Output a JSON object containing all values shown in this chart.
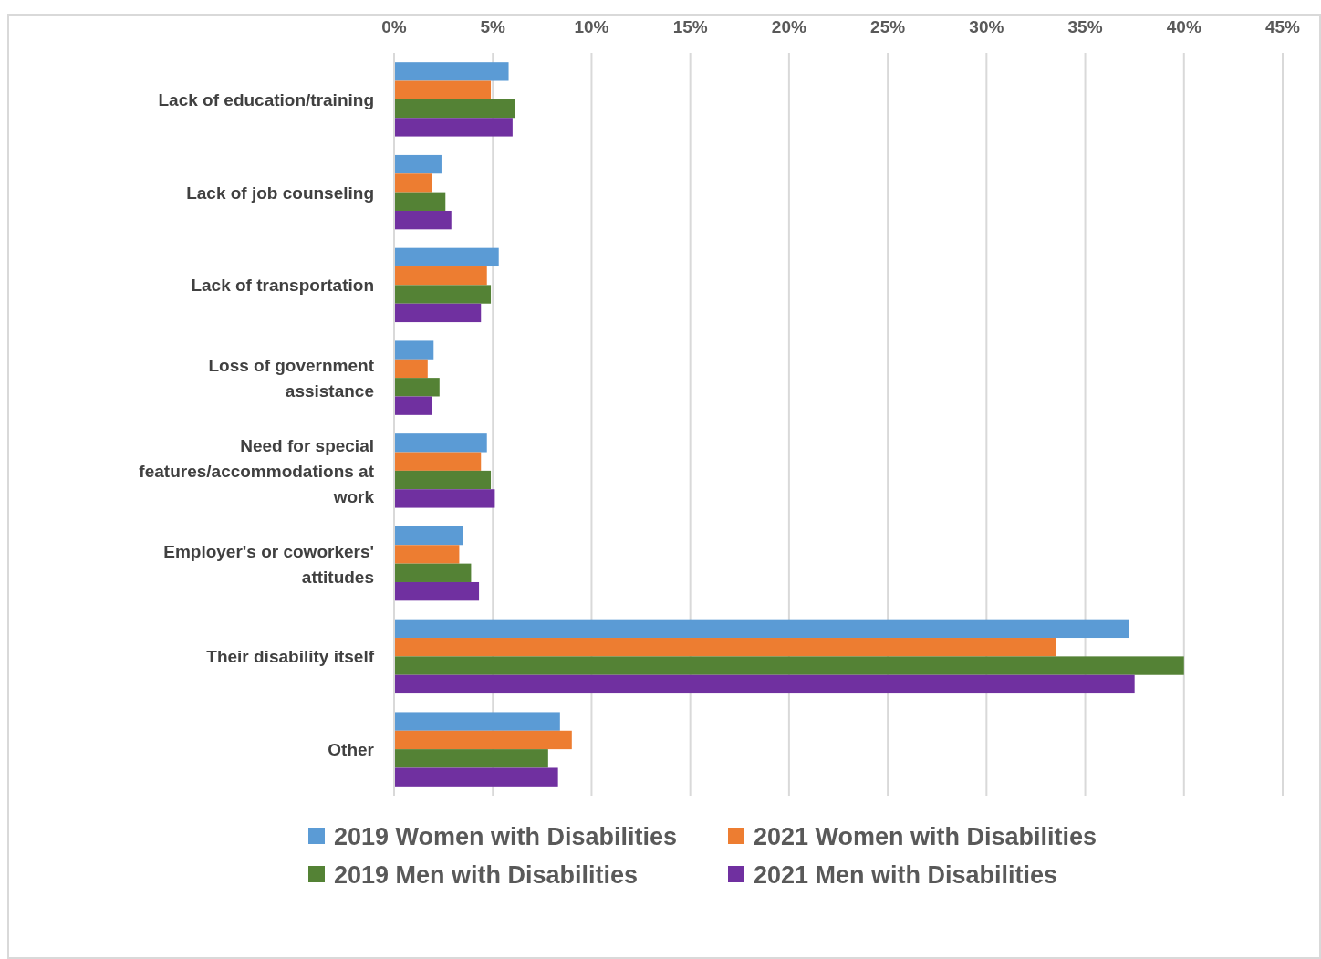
{
  "chart_data": {
    "type": "bar",
    "orientation": "horizontal",
    "categories": [
      "Lack of education/training",
      "Lack of job counseling",
      "Lack of transportation",
      "Loss of government assistance",
      "Need for special features/accommodations at work",
      "Employer's or coworkers' attitudes",
      "Their disability itself",
      "Other"
    ],
    "series": [
      {
        "name": "2019 Women with Disabilities",
        "color": "#5b9bd5",
        "values": [
          5.8,
          2.4,
          5.3,
          2.0,
          4.7,
          3.5,
          37.2,
          8.4
        ]
      },
      {
        "name": "2021 Women with Disabilities",
        "color": "#ed7d31",
        "values": [
          4.9,
          1.9,
          4.7,
          1.7,
          4.4,
          3.3,
          33.5,
          9.0
        ]
      },
      {
        "name": "2019 Men with Disabilities",
        "color": "#548235",
        "values": [
          6.1,
          2.6,
          4.9,
          2.3,
          4.9,
          3.9,
          40.0,
          7.8
        ]
      },
      {
        "name": "2021 Men with Disabilities",
        "color": "#7030a0",
        "values": [
          6.0,
          2.9,
          4.4,
          1.9,
          5.1,
          4.3,
          37.5,
          8.3
        ]
      }
    ],
    "xlim": [
      0,
      45
    ],
    "xticks": [
      {
        "value": 0,
        "label": "0%"
      },
      {
        "value": 5,
        "label": "5%"
      },
      {
        "value": 10,
        "label": "10%"
      },
      {
        "value": 15,
        "label": "15%"
      },
      {
        "value": 20,
        "label": "20%"
      },
      {
        "value": 25,
        "label": "25%"
      },
      {
        "value": 30,
        "label": "30%"
      },
      {
        "value": 35,
        "label": "35%"
      },
      {
        "value": 40,
        "label": "40%"
      },
      {
        "value": 45,
        "label": "45%"
      }
    ],
    "grid": "x",
    "legend": "bottom"
  }
}
